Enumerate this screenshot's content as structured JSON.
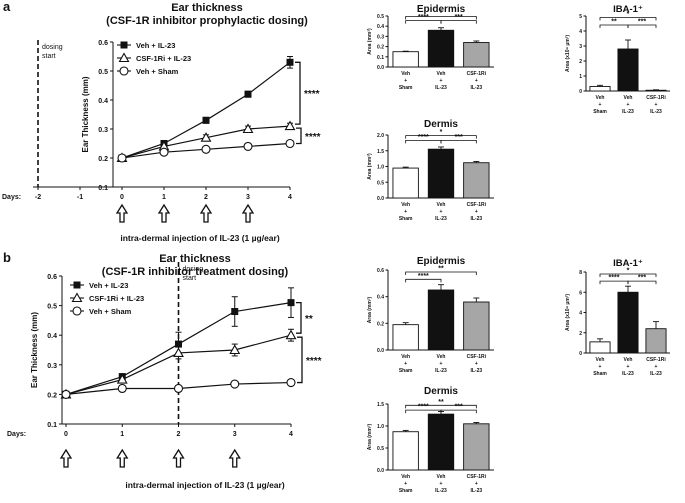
{
  "figure": {
    "panel_labels": [
      "a",
      "b"
    ],
    "legend": [
      "Veh + IL-23",
      "CSF-1Ri + IL-23",
      "Veh + Sham"
    ],
    "colors": {
      "veh_il23": "#111111",
      "csf1ri": "#a6a6a6",
      "sham": "#ffffff",
      "line": "#111111"
    },
    "injection_text": "intra-dermal injection of IL-23 (1 µg/ear)",
    "dosing_start": [
      "dosing",
      "start"
    ],
    "days_label": "Days:",
    "arrow_icon": "up-arrow-icon",
    "bar_categories": [
      [
        "Veh",
        "+",
        "Sham"
      ],
      [
        "Veh",
        "+",
        "IL-23"
      ],
      [
        "CSF-1Ri",
        "+",
        "IL-23"
      ]
    ]
  },
  "chart_data": [
    {
      "id": "a-line",
      "type": "line",
      "title": [
        "Ear thickness",
        "(CSF-1R inhibitor prophylactic dosing)"
      ],
      "xlabel": "",
      "ylabel": "Ear Thickness (mm)",
      "x_ticks": [
        "-2",
        "-1",
        "0",
        "1",
        "2",
        "3",
        "4"
      ],
      "x": [
        0,
        1,
        2,
        3,
        4
      ],
      "xlim": [
        -2,
        4
      ],
      "ylim": [
        0.1,
        0.6
      ],
      "y_ticks": [
        "0.1",
        "0.2",
        "0.3",
        "0.4",
        "0.5",
        "0.6"
      ],
      "series": [
        {
          "name": "Veh + IL-23",
          "marker": "square",
          "values": [
            0.2,
            0.25,
            0.33,
            0.42,
            0.53
          ],
          "err": [
            0.01,
            0.01,
            0.01,
            0.01,
            0.02
          ]
        },
        {
          "name": "CSF-1Ri + IL-23",
          "marker": "triangle",
          "values": [
            0.2,
            0.24,
            0.27,
            0.3,
            0.31
          ],
          "err": [
            0.01,
            0.01,
            0.01,
            0.01,
            0.01
          ]
        },
        {
          "name": "Veh + Sham",
          "marker": "circle",
          "values": [
            0.2,
            0.22,
            0.23,
            0.24,
            0.25
          ],
          "err": [
            0.01,
            0.01,
            0.01,
            0.01,
            0.01
          ]
        }
      ],
      "dosing_day": -2,
      "arrows_at": [
        0,
        1,
        2,
        3
      ],
      "brackets": [
        {
          "text": "****",
          "from": 0.53,
          "to": 0.31
        },
        {
          "text": "****",
          "from": 0.31,
          "to": 0.25
        }
      ]
    },
    {
      "id": "a-epi",
      "type": "bar",
      "title": "Epidermis",
      "ylabel": "Area (mm²)",
      "categories": [
        "Veh + Sham",
        "Veh + IL-23",
        "CSF-1Ri + IL-23"
      ],
      "values": [
        0.15,
        0.36,
        0.24
      ],
      "err": [
        0.005,
        0.025,
        0.015
      ],
      "ylim": [
        0,
        0.5
      ],
      "y_ticks": [
        "0.0",
        "0.1",
        "0.2",
        "0.3",
        "0.4",
        "0.5"
      ],
      "sig": [
        {
          "text": "****",
          "from": 0,
          "to": 1,
          "level": 0.455
        },
        {
          "text": "***",
          "from": 1,
          "to": 2,
          "level": 0.455
        },
        {
          "text": "*",
          "from": 0,
          "to": 2,
          "level": 0.495
        }
      ]
    },
    {
      "id": "a-der",
      "type": "bar",
      "title": "Dermis",
      "ylabel": "Area (mm²)",
      "categories": [
        "Veh + Sham",
        "Veh + IL-23",
        "CSF-1Ri + IL-23"
      ],
      "values": [
        0.95,
        1.55,
        1.12
      ],
      "err": [
        0.03,
        0.07,
        0.04
      ],
      "ylim": [
        0,
        2.0
      ],
      "y_ticks": [
        "0.0",
        "0.5",
        "1.0",
        "1.5",
        "2.0"
      ],
      "sig": [
        {
          "text": "****",
          "from": 0,
          "to": 1,
          "level": 1.83
        },
        {
          "text": "***",
          "from": 1,
          "to": 2,
          "level": 1.83
        },
        {
          "text": "*",
          "from": 0,
          "to": 2,
          "level": 1.98
        }
      ]
    },
    {
      "id": "a-iba",
      "type": "bar",
      "title": "IBA-1⁺",
      "ylabel": "Area (x10⁴ µm²)",
      "categories": [
        "Veh + Sham",
        "Veh + IL-23",
        "CSF-1Ri + IL-23"
      ],
      "values": [
        0.3,
        2.8,
        0.05
      ],
      "err": [
        0.08,
        0.6,
        0.03
      ],
      "ylim": [
        0,
        5
      ],
      "y_ticks": [
        "0",
        "1",
        "2",
        "3",
        "4",
        "5"
      ],
      "sig": [
        {
          "text": "**",
          "from": 0,
          "to": 1,
          "level": 4.4
        },
        {
          "text": "***",
          "from": 1,
          "to": 2,
          "level": 4.4
        },
        {
          "text": "*",
          "from": 0,
          "to": 2,
          "level": 4.9
        }
      ]
    },
    {
      "id": "b-line",
      "type": "line",
      "title": [
        "Ear thickness",
        "(CSF-1R inhibitor treatment dosing)"
      ],
      "xlabel": "",
      "ylabel": "Ear Thickness (mm)",
      "x_ticks": [
        "0",
        "1",
        "2",
        "3",
        "4"
      ],
      "x": [
        0,
        1,
        2,
        3,
        4
      ],
      "xlim": [
        0,
        4
      ],
      "ylim": [
        0.1,
        0.6
      ],
      "y_ticks": [
        "0.1",
        "0.2",
        "0.3",
        "0.4",
        "0.5",
        "0.6"
      ],
      "series": [
        {
          "name": "Veh + IL-23",
          "marker": "square",
          "values": [
            0.2,
            0.26,
            0.37,
            0.48,
            0.51
          ],
          "err": [
            0.01,
            0.01,
            0.04,
            0.05,
            0.05
          ]
        },
        {
          "name": "CSF-1Ri + IL-23",
          "marker": "triangle",
          "values": [
            0.2,
            0.25,
            0.34,
            0.35,
            0.4
          ],
          "err": [
            0.01,
            0.01,
            0.02,
            0.02,
            0.02
          ]
        },
        {
          "name": "Veh + Sham",
          "marker": "circle",
          "values": [
            0.2,
            0.22,
            0.22,
            0.235,
            0.24
          ],
          "err": [
            0.005,
            0.005,
            0.005,
            0.005,
            0.005
          ]
        }
      ],
      "dosing_day": 2,
      "arrows_at": [
        0,
        1,
        2,
        3
      ],
      "brackets": [
        {
          "text": "**",
          "from": 0.51,
          "to": 0.4
        },
        {
          "text": "****",
          "from": 0.4,
          "to": 0.24
        }
      ]
    },
    {
      "id": "b-epi",
      "type": "bar",
      "title": "Epidermis",
      "ylabel": "Area (mm²)",
      "categories": [
        "Veh + Sham",
        "Veh + IL-23",
        "CSF-1Ri + IL-23"
      ],
      "values": [
        0.19,
        0.45,
        0.36
      ],
      "err": [
        0.015,
        0.04,
        0.03
      ],
      "ylim": [
        0,
        0.6
      ],
      "y_ticks": [
        "0.0",
        "0.2",
        "0.4",
        "0.6"
      ],
      "sig": [
        {
          "text": "****",
          "from": 0,
          "to": 1,
          "level": 0.53
        },
        {
          "text": "**",
          "from": 0,
          "to": 2,
          "level": 0.585
        }
      ]
    },
    {
      "id": "b-der",
      "type": "bar",
      "title": "Dermis",
      "ylabel": "Area (mm²)",
      "categories": [
        "Veh + Sham",
        "Veh + IL-23",
        "CSF-1Ri + IL-23"
      ],
      "values": [
        0.87,
        1.27,
        1.05
      ],
      "err": [
        0.03,
        0.06,
        0.03
      ],
      "ylim": [
        0,
        1.5
      ],
      "y_ticks": [
        "0.0",
        "0.5",
        "1.0",
        "1.5"
      ],
      "sig": [
        {
          "text": "****",
          "from": 0,
          "to": 1,
          "level": 1.36
        },
        {
          "text": "***",
          "from": 1,
          "to": 2,
          "level": 1.36
        },
        {
          "text": "**",
          "from": 0,
          "to": 2,
          "level": 1.47
        }
      ]
    },
    {
      "id": "b-iba",
      "type": "bar",
      "title": "IBA-1⁺",
      "ylabel": "Area (x10⁴ µm²)",
      "categories": [
        "Veh + Sham",
        "Veh + IL-23",
        "CSF-1Ri + IL-23"
      ],
      "values": [
        1.1,
        6.0,
        2.4
      ],
      "err": [
        0.3,
        0.6,
        0.7
      ],
      "ylim": [
        0,
        8
      ],
      "y_ticks": [
        "0",
        "2",
        "4",
        "6",
        "8"
      ],
      "sig": [
        {
          "text": "****",
          "from": 0,
          "to": 1,
          "level": 7.1
        },
        {
          "text": "***",
          "from": 1,
          "to": 2,
          "level": 7.1
        },
        {
          "text": "*",
          "from": 0,
          "to": 2,
          "level": 7.8
        }
      ]
    }
  ]
}
